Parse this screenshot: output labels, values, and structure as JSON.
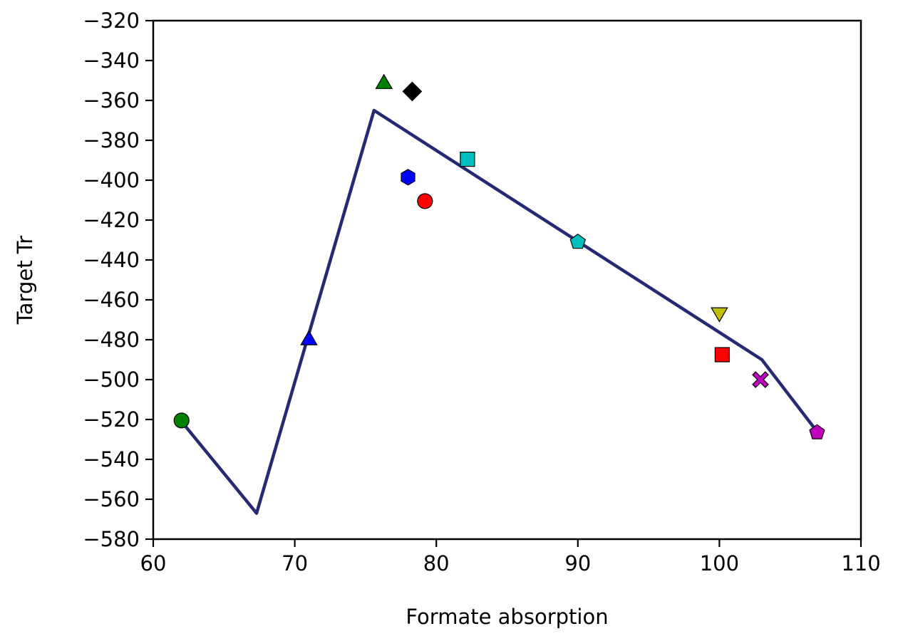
{
  "chart_data": {
    "type": "scatter",
    "title": "",
    "xlabel": "Formate absorption",
    "ylabel": "Target Tr",
    "xlim": [
      60,
      110
    ],
    "ylim": [
      -580,
      -320
    ],
    "xticks": [
      60,
      70,
      80,
      90,
      100,
      110
    ],
    "yticks": [
      -580,
      -560,
      -540,
      -520,
      -500,
      -480,
      -460,
      -440,
      -420,
      -400,
      -380,
      -360,
      -340,
      -320
    ],
    "grid": false,
    "legend": "none",
    "line": {
      "color": "#262a73",
      "points": [
        {
          "x": 62.0,
          "y": -521
        },
        {
          "x": 67.3,
          "y": -567
        },
        {
          "x": 75.6,
          "y": -365
        },
        {
          "x": 103.0,
          "y": -490
        },
        {
          "x": 107.0,
          "y": -527
        }
      ]
    },
    "points": [
      {
        "x": 62.0,
        "y": -520.5,
        "marker": "circle",
        "color": "#008000"
      },
      {
        "x": 71.0,
        "y": -479.5,
        "marker": "triangle-up",
        "color": "#0000ff"
      },
      {
        "x": 76.3,
        "y": -351.0,
        "marker": "triangle-up",
        "color": "#008000"
      },
      {
        "x": 78.0,
        "y": -398.5,
        "marker": "hexagon",
        "color": "#0000ff"
      },
      {
        "x": 78.3,
        "y": -355.5,
        "marker": "diamond",
        "color": "#000000"
      },
      {
        "x": 79.2,
        "y": -410.5,
        "marker": "circle",
        "color": "#ff0000"
      },
      {
        "x": 82.2,
        "y": -389.5,
        "marker": "square",
        "color": "#00bfbf"
      },
      {
        "x": 90.0,
        "y": -431.0,
        "marker": "pentagon",
        "color": "#00bfbf"
      },
      {
        "x": 100.0,
        "y": -467.0,
        "marker": "triangle-down",
        "color": "#bfbf00"
      },
      {
        "x": 100.2,
        "y": -487.5,
        "marker": "square",
        "color": "#ff0000"
      },
      {
        "x": 102.9,
        "y": -500.0,
        "marker": "x-filled",
        "color": "#bf00bf"
      },
      {
        "x": 106.9,
        "y": -526.5,
        "marker": "pentagon",
        "color": "#bf00bf"
      }
    ]
  }
}
